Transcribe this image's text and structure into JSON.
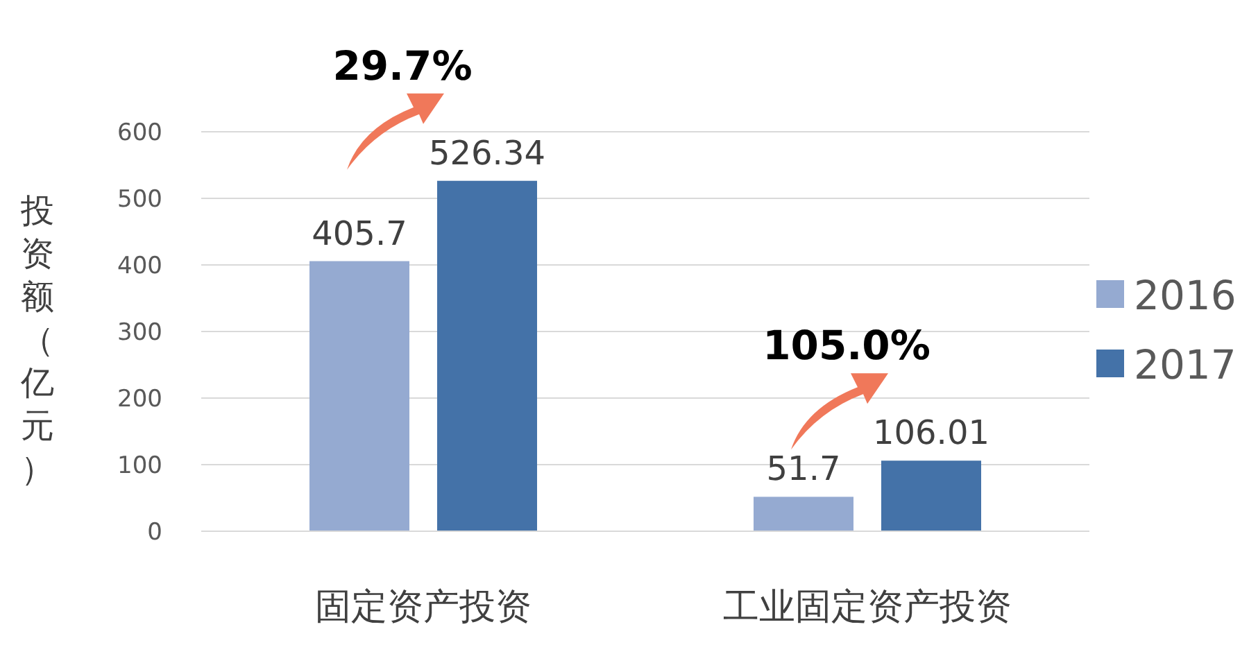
{
  "chart_data": {
    "type": "bar",
    "ylabel": "投资额（亿元）",
    "categories": [
      "固定资产投资",
      "工业固定资产投资"
    ],
    "series": [
      {
        "name": "2016",
        "color": "#95aad1",
        "values": [
          405.7,
          51.7
        ]
      },
      {
        "name": "2017",
        "color": "#4472a8",
        "values": [
          526.34,
          106.01
        ]
      }
    ],
    "ylim": [
      0,
      600
    ],
    "yticks": [
      0,
      100,
      200,
      300,
      400,
      500,
      600
    ],
    "grid": "y",
    "legend": "right",
    "data_labels": true,
    "annotations": [
      "29.7%",
      "105.0%"
    ]
  }
}
